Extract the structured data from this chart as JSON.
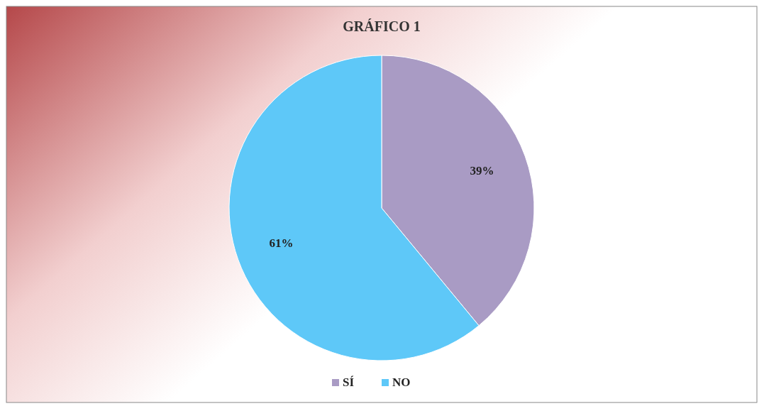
{
  "chart_data": {
    "type": "pie",
    "title": "GRÁFICO 1",
    "categories": [
      "SÍ",
      "NO"
    ],
    "values": [
      39,
      61
    ],
    "colors": [
      "#a99bc4",
      "#5ec8f8"
    ],
    "value_labels": [
      "39%",
      "61%"
    ],
    "legend": "bottom"
  }
}
